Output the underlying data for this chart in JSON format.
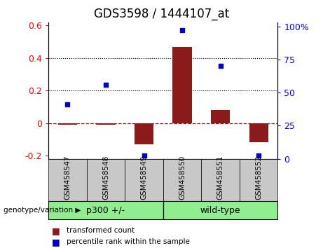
{
  "title": "GDS3598 / 1444107_at",
  "samples": [
    "GSM458547",
    "GSM458548",
    "GSM458549",
    "GSM458550",
    "GSM458551",
    "GSM458552"
  ],
  "bar_values": [
    -0.01,
    -0.01,
    -0.13,
    0.47,
    0.08,
    -0.12
  ],
  "dot_values_pct": [
    41,
    56,
    2.5,
    97,
    70,
    2.5
  ],
  "bar_color": "#8B1A1A",
  "dot_color": "#0000CC",
  "ylim": [
    -0.22,
    0.62
  ],
  "y2lim": [
    0,
    103
  ],
  "yticks_left": [
    -0.2,
    0.0,
    0.2,
    0.4,
    0.6
  ],
  "ytick_labels_left": [
    "-0.2",
    "0",
    "0.2",
    "0.4",
    "0.6"
  ],
  "yticks_right": [
    0,
    25,
    50,
    75,
    100
  ],
  "ytick_labels_right": [
    "0",
    "25",
    "50",
    "75",
    "100%"
  ],
  "dotted_lines": [
    0.2,
    0.4
  ],
  "groups": [
    {
      "label": "p300 +/-",
      "indices": [
        0,
        1,
        2
      ]
    },
    {
      "label": "wild-type",
      "indices": [
        3,
        4,
        5
      ]
    }
  ],
  "xlabel_group": "genotype/variation",
  "legend_bar_label": "transformed count",
  "legend_dot_label": "percentile rank within the sample",
  "bar_width": 0.5,
  "tick_bg_color": "#C8C8C8",
  "green_color": "#90EE90",
  "title_fontsize": 12,
  "axis_fontsize": 9
}
